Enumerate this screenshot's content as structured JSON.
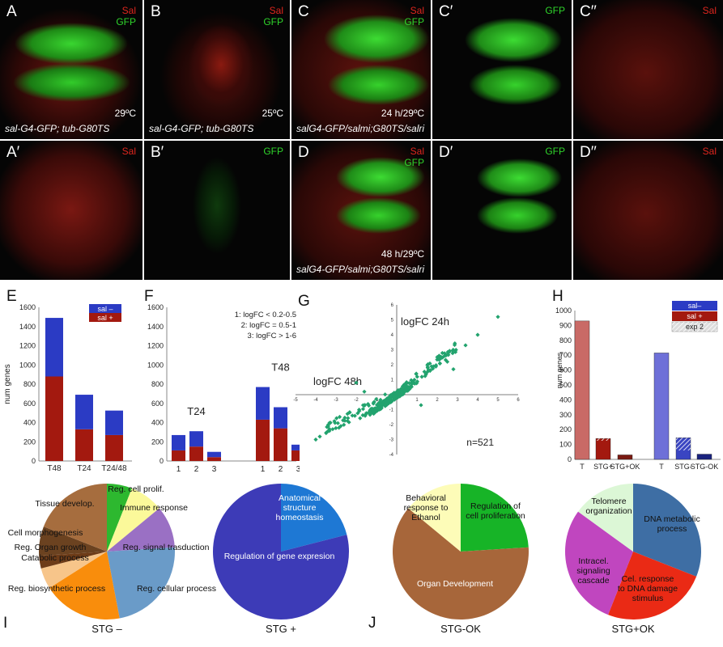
{
  "microscopy": {
    "A": {
      "label": "A",
      "channels": [
        "Sal",
        "GFP"
      ],
      "temp": "29ºC",
      "genotype": "sal-G4-GFP; tub-G80TS"
    },
    "B": {
      "label": "B",
      "channels": [
        "Sal",
        "GFP"
      ],
      "temp": "25ºC",
      "genotype": "sal-G4-GFP; tub-G80TS"
    },
    "C": {
      "label": "C",
      "channels": [
        "Sal",
        "GFP"
      ],
      "temp": "24 h/29ºC",
      "genotype": "salG4-GFP/salmi;G80TS/salri"
    },
    "C1": {
      "label": "C′",
      "channels": [
        "GFP"
      ]
    },
    "C2": {
      "label": "C′′",
      "channels": [
        "Sal"
      ]
    },
    "A1": {
      "label": "A′",
      "channels": [
        "Sal"
      ]
    },
    "B1": {
      "label": "B′",
      "channels": [
        "GFP"
      ]
    },
    "D": {
      "label": "D",
      "channels": [
        "Sal",
        "GFP"
      ],
      "temp": "48 h/29ºC",
      "genotype": "salG4-GFP/salmi;G80TS/salri"
    },
    "D1": {
      "label": "D′",
      "channels": [
        "GFP"
      ]
    },
    "D2": {
      "label": "D′′",
      "channels": [
        "Sal"
      ]
    }
  },
  "colors": {
    "sal_minus": "#2b3bc4",
    "sal_plus": "#a3190f",
    "green": "#22a36e"
  },
  "chart_data": [
    {
      "panel": "E",
      "type": "bar",
      "ylabel": "num genes",
      "ylim": [
        0,
        1600
      ],
      "yticks": [
        0,
        200,
        400,
        600,
        800,
        1000,
        1200,
        1400,
        1600
      ],
      "categories": [
        "T48",
        "T24",
        "T24/48"
      ],
      "series": [
        {
          "name": "sal +",
          "values": [
            880,
            330,
            270
          ]
        },
        {
          "name": "sal –",
          "values": [
            610,
            360,
            255
          ]
        }
      ],
      "legend": [
        "sal –",
        "sal +"
      ]
    },
    {
      "panel": "F",
      "type": "bar",
      "ylim": [
        0,
        1600
      ],
      "yticks": [
        0,
        200,
        400,
        600,
        800,
        1000,
        1200,
        1400,
        1600
      ],
      "groups": [
        "T24",
        "T48"
      ],
      "categories": [
        "1",
        "2",
        "3"
      ],
      "series": [
        {
          "name": "sal +",
          "values": [
            [
              110,
              150,
              40
            ],
            [
              430,
              340,
              110
            ]
          ]
        },
        {
          "name": "sal –",
          "values": [
            [
              160,
              160,
              55
            ],
            [
              340,
              220,
              60
            ]
          ]
        }
      ],
      "notes": [
        "1: logFC < 0.2-0.5",
        "2: logFC = 0.5-1",
        "3: logFC > 1-6"
      ]
    },
    {
      "panel": "G",
      "type": "scatter",
      "xlabel": "logFC 48h",
      "ylabel": "logFC 24h",
      "xlim": [
        -5,
        6
      ],
      "ylim": [
        -4,
        6
      ],
      "xticks": [
        -5,
        -4,
        -3,
        -2,
        -1,
        1,
        2,
        3,
        4,
        5,
        6
      ],
      "yticks": [
        -4,
        -3,
        -2,
        -1,
        1,
        2,
        3,
        4,
        5,
        6
      ],
      "n_label": "n=521"
    },
    {
      "panel": "H",
      "type": "bar",
      "ylabel": "num genes",
      "ylim": [
        0,
        1000
      ],
      "yticks": [
        0,
        100,
        200,
        300,
        400,
        500,
        600,
        700,
        800,
        900,
        1000
      ],
      "categories": [
        "T",
        "STG+",
        "STG+OK",
        "T",
        "STG-",
        "STG-OK"
      ],
      "values": [
        930,
        140,
        30,
        715,
        145,
        35
      ],
      "hatched_part": [
        0,
        15,
        0,
        0,
        85,
        0
      ],
      "legend": [
        "sal–",
        "sal +",
        "exp 2"
      ]
    },
    {
      "panel": "I",
      "type": "pie",
      "title": "STG –",
      "slices": [
        {
          "label": "Reg. cell prolif.",
          "value": 6,
          "color": "#2db82f"
        },
        {
          "label": "Immune response",
          "value": 8,
          "color": "#fbf99a"
        },
        {
          "label": "Reg. signal trasduction",
          "value": 10,
          "color": "#9a70c4"
        },
        {
          "label": "Reg. cellular  process",
          "value": 23,
          "color": "#6a9bc8"
        },
        {
          "label": "Reg. biosynthetic process",
          "value": 19,
          "color": "#f98d0c"
        },
        {
          "label": "Catabolic process",
          "value": 5,
          "color": "#f7c58a"
        },
        {
          "label": "Reg. Organ growth",
          "value": 3,
          "color": "#6e3c18"
        },
        {
          "label": "Cell morphogenesis",
          "value": 7,
          "color": "#6b4220"
        },
        {
          "label": "Tissue develop.",
          "value": 19,
          "color": "#a66d3e"
        }
      ]
    },
    {
      "panel": "I2",
      "type": "pie",
      "title": "STG +",
      "slices": [
        {
          "label": "Anatomical structure homeostasis",
          "value": 21,
          "color": "#1e78d4"
        },
        {
          "label": "Regulation of gene expresion",
          "value": 79,
          "color": "#3d3bb7"
        }
      ]
    },
    {
      "panel": "J",
      "type": "pie",
      "title": "STG-OK",
      "slices": [
        {
          "label": "Regulation of cell proliferation",
          "value": 24,
          "color": "#17b427"
        },
        {
          "label": "Organ Development",
          "value": 62,
          "color": "#a7663a"
        },
        {
          "label": "Behavioral response to Ethanol",
          "value": 14,
          "color": "#fdfcb8"
        }
      ]
    },
    {
      "panel": "J2",
      "type": "pie",
      "title": "STG+OK",
      "slices": [
        {
          "label": "DNA metabolic process",
          "value": 31,
          "color": "#3e6ea4"
        },
        {
          "label": "Cel. response to DNA damage stimulus",
          "value": 25,
          "color": "#ea2a15"
        },
        {
          "label": "Intracel. signaling cascade",
          "value": 29,
          "color": "#c046bf"
        },
        {
          "label": "Telomere organization",
          "value": 15,
          "color": "#dcf7d6"
        }
      ]
    }
  ],
  "letters": {
    "E": "E",
    "F": "F",
    "G": "G",
    "H": "H",
    "I": "I",
    "J": "J"
  }
}
